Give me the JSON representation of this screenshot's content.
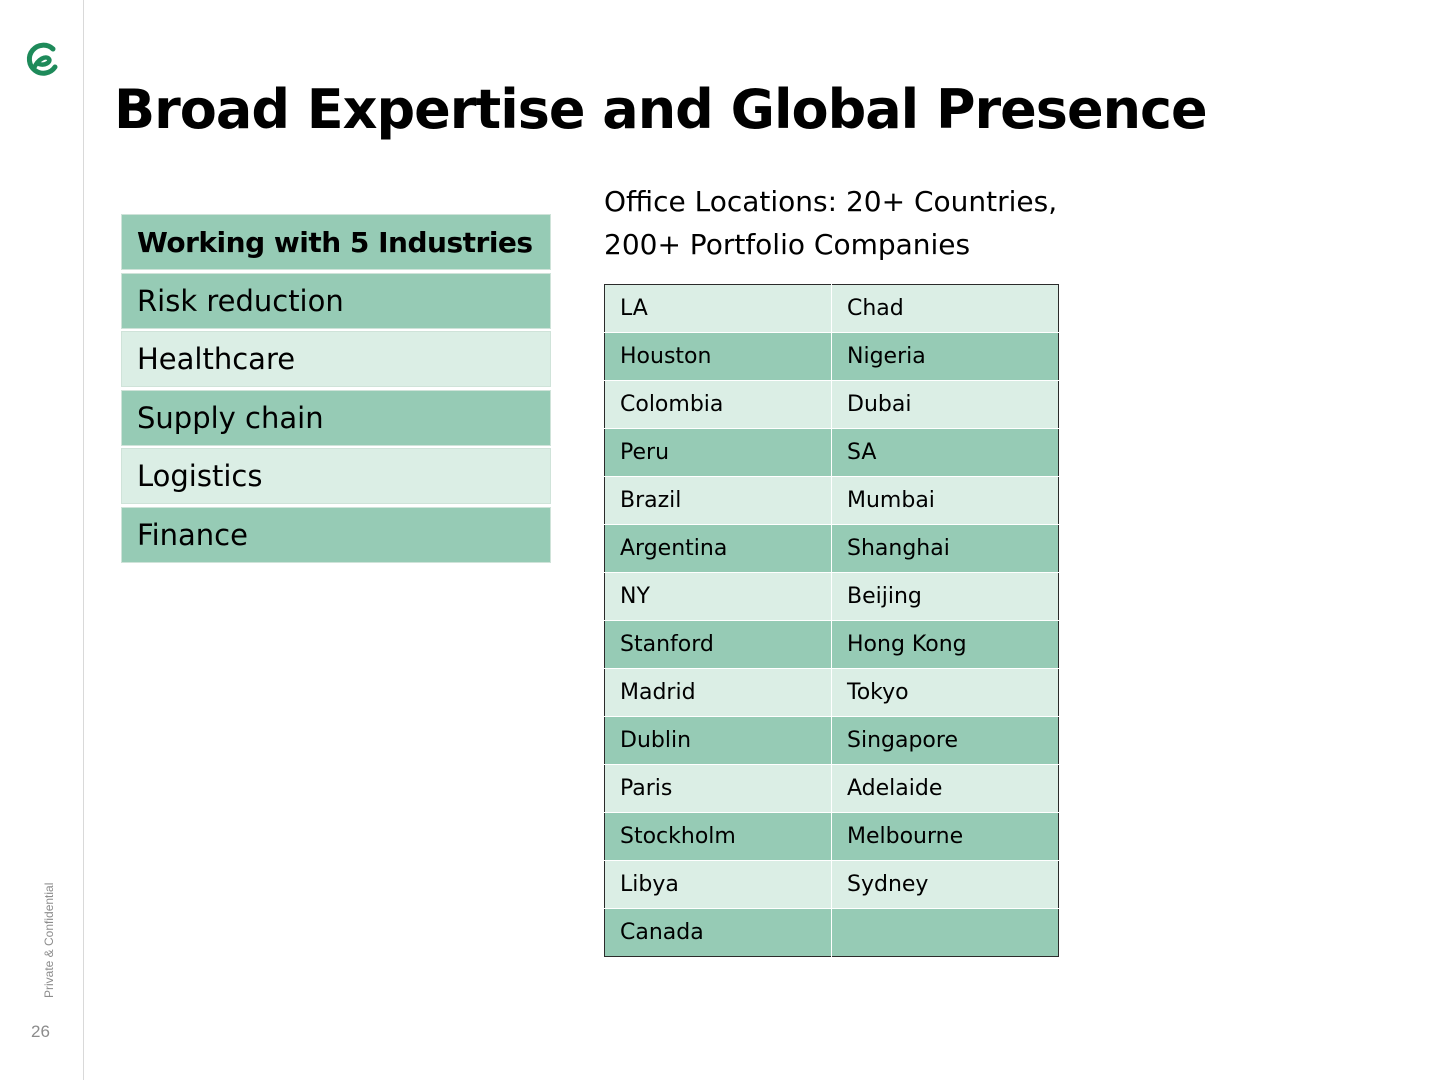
{
  "slide": {
    "title": "Broad Expertise and Global Presence",
    "confidential_label": "Private & Confidential",
    "page_number": "26",
    "accent_color": "#1e8a5a"
  },
  "industries": {
    "header": "Working with 5 Industries",
    "items": [
      "Risk reduction",
      "Healthcare",
      "Supply chain",
      "Logistics",
      "Finance"
    ]
  },
  "offices": {
    "caption_line1": "Office Locations: 20+ Countries,",
    "caption_line2": "200+ Portfolio Companies",
    "rows": [
      [
        "LA",
        "Chad"
      ],
      [
        "Houston",
        "Nigeria"
      ],
      [
        "Colombia",
        "Dubai"
      ],
      [
        "Peru",
        "SA"
      ],
      [
        "Brazil",
        "Mumbai"
      ],
      [
        "Argentina",
        "Shanghai"
      ],
      [
        "NY",
        "Beijing"
      ],
      [
        "Stanford",
        "Hong Kong"
      ],
      [
        "Madrid",
        "Tokyo"
      ],
      [
        "Dublin",
        "Singapore"
      ],
      [
        "Paris",
        "Adelaide"
      ],
      [
        "Stockholm",
        "Melbourne"
      ],
      [
        "Libya",
        "Sydney"
      ],
      [
        "Canada",
        ""
      ]
    ]
  }
}
